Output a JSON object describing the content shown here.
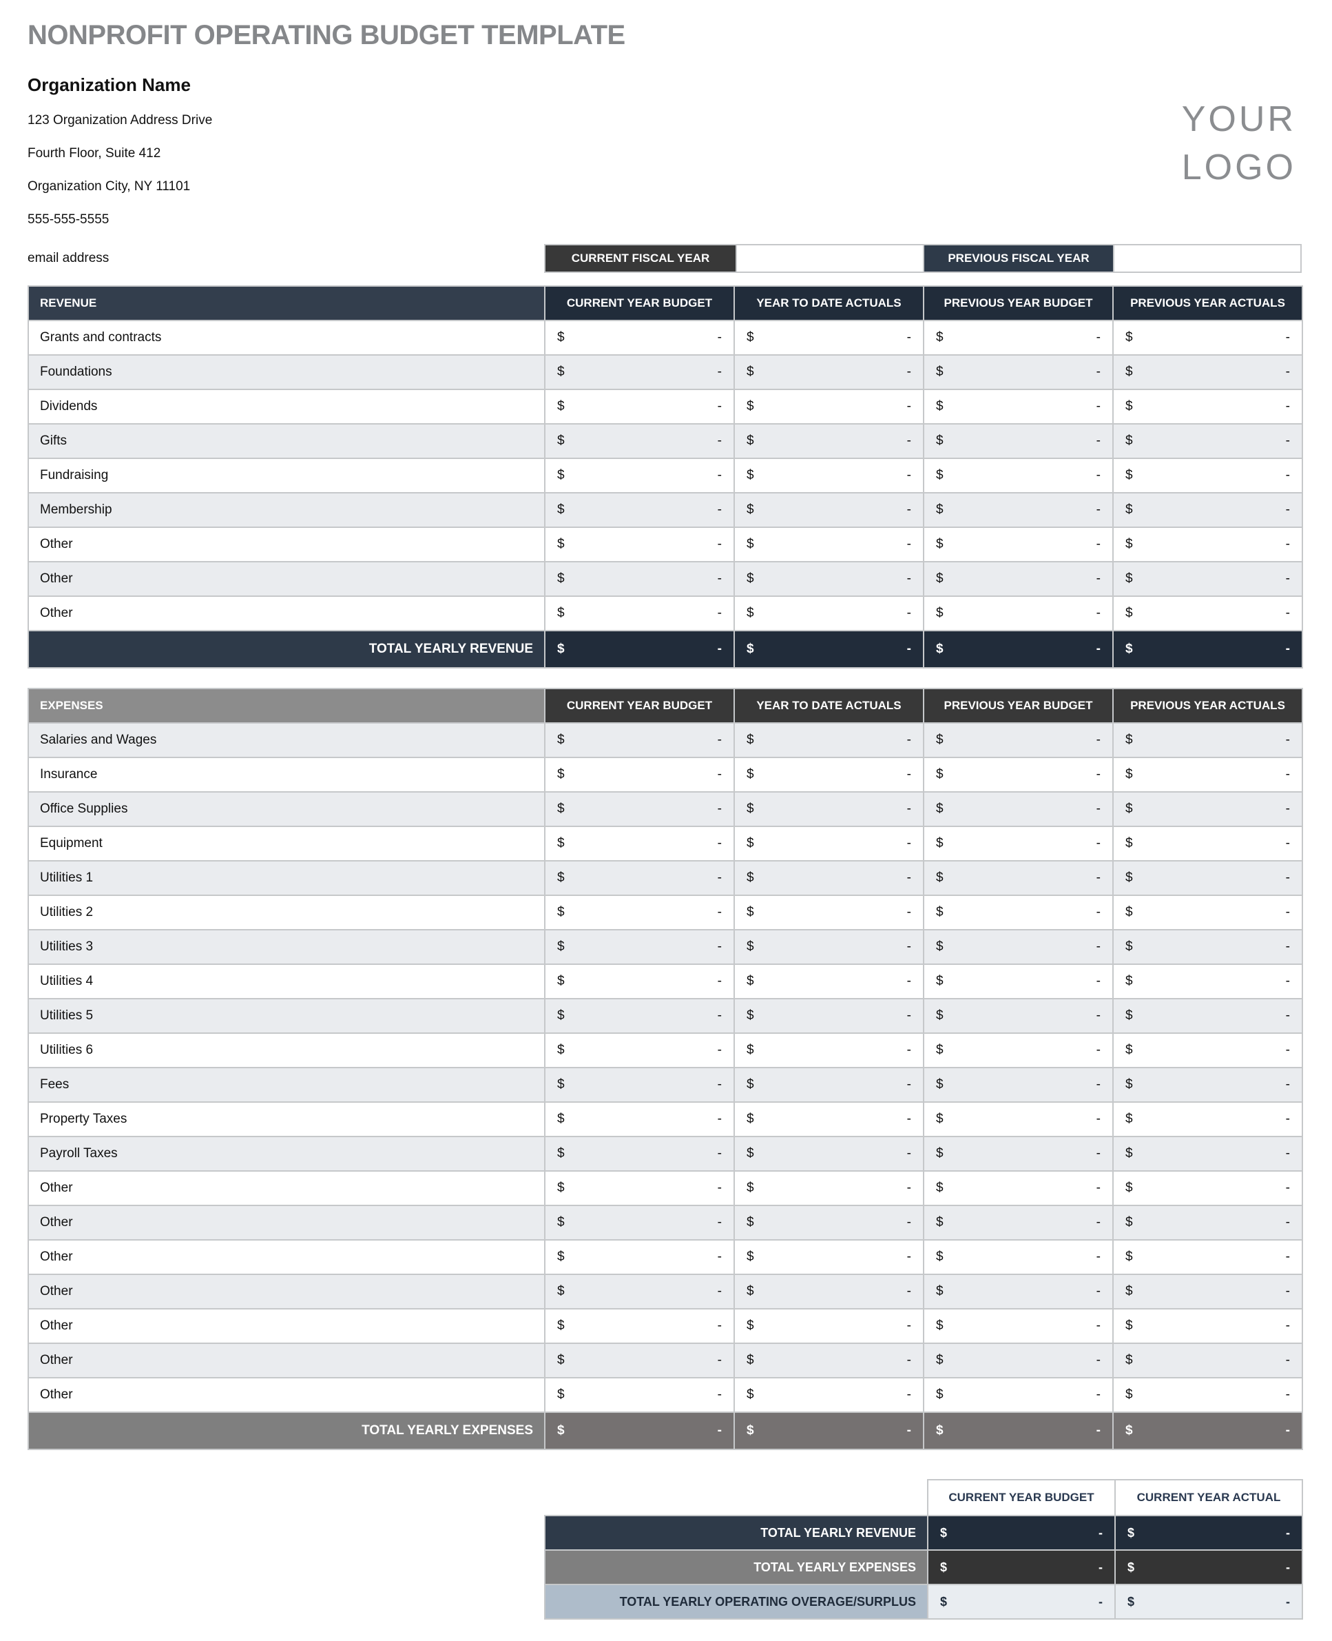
{
  "title": "NONPROFIT OPERATING BUDGET TEMPLATE",
  "logo": {
    "line1": "YOUR",
    "line2": "LOGO"
  },
  "org": {
    "name": "Organization Name",
    "address1": "123 Organization Address Drive",
    "address2": "Fourth Floor, Suite 412",
    "address3": "Organization City, NY  11101",
    "phone": "555-555-5555",
    "email": "email address"
  },
  "fiscal": {
    "current_label": "CURRENT FISCAL YEAR",
    "current_value": "",
    "previous_label": "PREVIOUS FISCAL YEAR",
    "previous_value": ""
  },
  "columns": [
    "CURRENT YEAR BUDGET",
    "YEAR TO DATE ACTUALS",
    "PREVIOUS YEAR BUDGET",
    "PREVIOUS YEAR ACTUALS"
  ],
  "currency_symbol": "$",
  "empty_value": "-",
  "revenue": {
    "header": "REVENUE",
    "rows": [
      "Grants and contracts",
      "Foundations",
      "Dividends",
      "Gifts",
      "Fundraising",
      "Membership",
      "Other",
      "Other",
      "Other"
    ],
    "total_label": "TOTAL YEARLY REVENUE"
  },
  "expenses": {
    "header": "EXPENSES",
    "rows": [
      "Salaries and Wages",
      "Insurance",
      "Office Supplies",
      "Equipment",
      "Utilities 1",
      "Utilities 2",
      "Utilities 3",
      "Utilities 4",
      "Utilities 5",
      "Utilities 6",
      "Fees",
      "Property Taxes",
      "Payroll Taxes",
      "Other",
      "Other",
      "Other",
      "Other",
      "Other",
      "Other",
      "Other"
    ],
    "total_label": "TOTAL YEARLY EXPENSES"
  },
  "summary": {
    "columns": [
      "CURRENT YEAR BUDGET",
      "CURRENT YEAR ACTUAL"
    ],
    "rows": [
      {
        "label": "TOTAL YEARLY REVENUE",
        "style": "revenue"
      },
      {
        "label": "TOTAL YEARLY EXPENSES",
        "style": "expenses"
      },
      {
        "label": "TOTAL YEARLY OPERATING OVERAGE/SURPLUS",
        "style": "surplus"
      }
    ]
  },
  "colors": {
    "title_gray": "#85878a",
    "logo_gray": "#8b8d90",
    "navy_dark": "#212c3a",
    "navy_mid": "#333e4d",
    "navy_total_label": "#2e3a49",
    "charcoal": "#383838",
    "gray_header": "#8c8c8c",
    "gray_total_label": "#7f7f7f",
    "gray_total_val": "#757171",
    "stripe": "#eaecef",
    "sum_expense_val": "#343434",
    "surplus_label": "#aebcca",
    "surplus_val": "#e9edf1",
    "border_light": "#c6c8ca"
  }
}
